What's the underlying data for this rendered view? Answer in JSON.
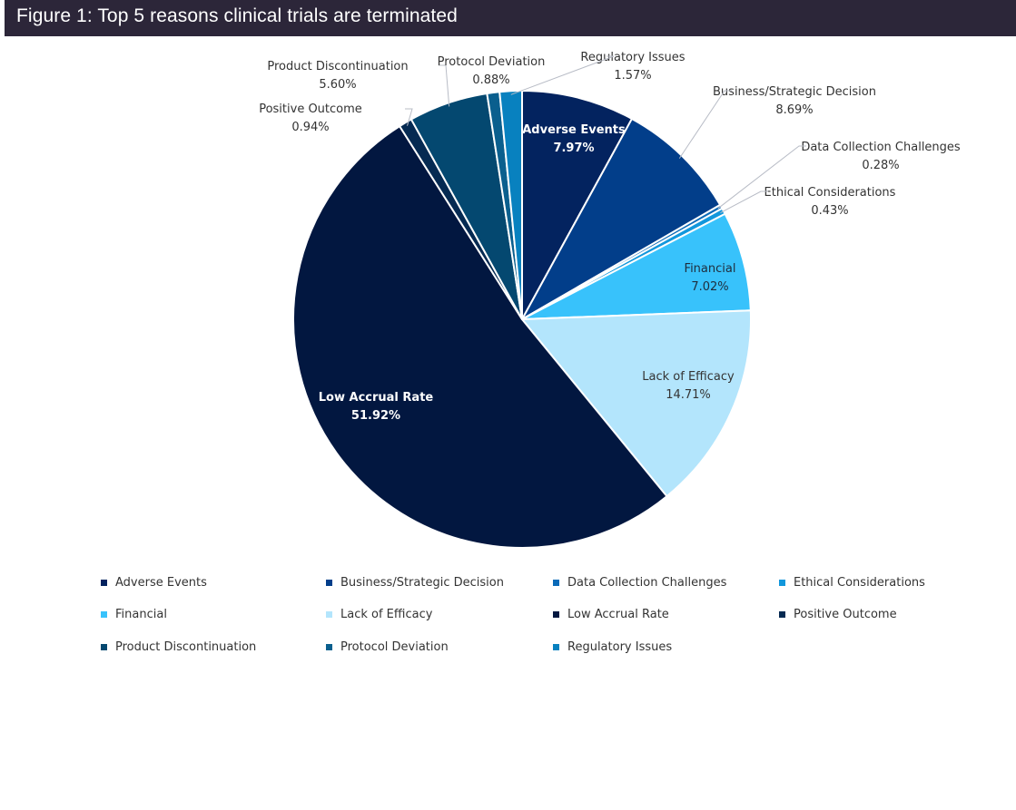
{
  "header": {
    "title": "Figure 1: Top 5 reasons clinical trials are terminated"
  },
  "chart_data": {
    "type": "pie",
    "title": "Figure 1: Top 5 reasons clinical trials are terminated",
    "start": "12 o'clock, clockwise",
    "legend_position": "bottom",
    "slices": [
      {
        "label": "Adverse Events",
        "value": 7.97,
        "display": "7.97%",
        "color": "#03235f",
        "label_inside": true,
        "label_color": "#ffffff",
        "bold": true
      },
      {
        "label": "Business/Strategic Decision",
        "value": 8.69,
        "display": "8.69%",
        "color": "#023e8a",
        "label_inside": false
      },
      {
        "label": "Data Collection Challenges",
        "value": 0.28,
        "display": "0.28%",
        "color": "#0a6ab8",
        "label_inside": false
      },
      {
        "label": "Ethical Considerations",
        "value": 0.43,
        "display": "0.43%",
        "color": "#1297dc",
        "label_inside": false
      },
      {
        "label": "Financial",
        "value": 7.02,
        "display": "7.02%",
        "color": "#38c2fb",
        "label_inside": true,
        "label_color": "#1f2d3d",
        "bold": false
      },
      {
        "label": "Lack of Efficacy",
        "value": 14.71,
        "display": "14.71%",
        "color": "#b3e5fc",
        "label_inside": true,
        "label_color": "#333333",
        "bold": false
      },
      {
        "label": "Low Accrual Rate",
        "value": 51.92,
        "display": "51.92%",
        "color": "#021740",
        "label_inside": true,
        "label_color": "#ffffff",
        "bold": true
      },
      {
        "label": "Positive Outcome",
        "value": 0.94,
        "display": "0.94%",
        "color": "#052a52",
        "label_inside": false
      },
      {
        "label": "Product Discontinuation",
        "value": 5.6,
        "display": "5.60%",
        "color": "#044870",
        "label_inside": false
      },
      {
        "label": "Protocol Deviation",
        "value": 0.88,
        "display": "0.88%",
        "color": "#0a5f8e",
        "label_inside": false
      },
      {
        "label": "Regulatory Issues",
        "value": 1.57,
        "display": "1.57%",
        "color": "#0881bf",
        "label_inside": false
      }
    ],
    "legend": [
      "Adverse Events",
      "Business/Strategic Decision",
      "Data Collection Challenges",
      "Ethical Considerations",
      "Financial",
      "Lack of Efficacy",
      "Low Accrual Rate",
      "Positive Outcome",
      "Product Discontinuation",
      "Protocol Deviation",
      "Regulatory Issues"
    ]
  }
}
